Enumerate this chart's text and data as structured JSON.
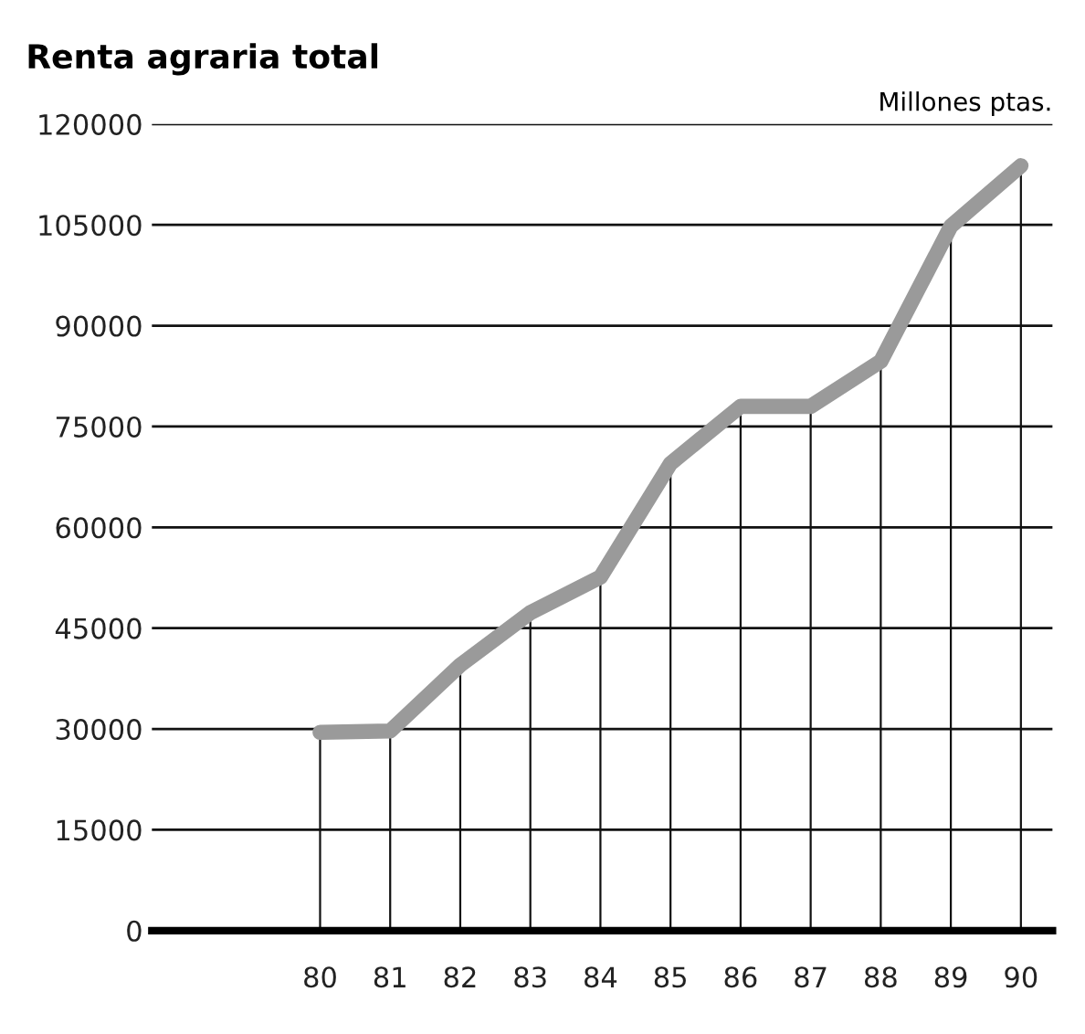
{
  "chart_data": {
    "type": "line",
    "title": "Renta agraria total",
    "ylabel": "Millones ptas.",
    "categories": [
      "80",
      "81",
      "82",
      "83",
      "84",
      "85",
      "86",
      "87",
      "88",
      "89",
      "90"
    ],
    "series": [
      {
        "color": "#9a9a9a",
        "values": [
          29500,
          29700,
          39500,
          47300,
          52600,
          69500,
          78000,
          78000,
          84700,
          104800,
          113800
        ]
      }
    ],
    "ylim": [
      0,
      120000
    ],
    "yticks": [
      0,
      15000,
      30000,
      45000,
      60000,
      75000,
      90000,
      105000,
      120000
    ],
    "grid": true,
    "marker": "none",
    "line_style": "solid"
  }
}
